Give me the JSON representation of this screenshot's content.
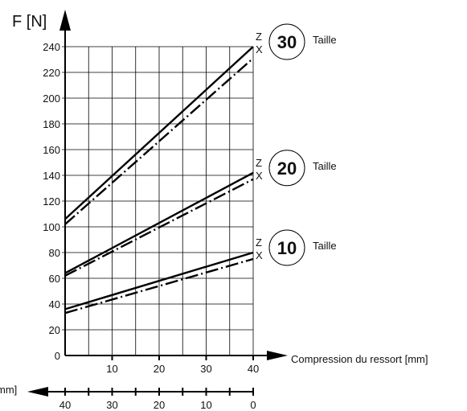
{
  "chart_data": {
    "type": "line",
    "title": "",
    "ylabel": "F [N]",
    "xlabel": "Compression du ressort [mm]",
    "x2label": "mm]",
    "ylim": [
      0,
      240
    ],
    "xlim": [
      0,
      40
    ],
    "y_ticks": [
      "0",
      "20",
      "40",
      "60",
      "80",
      "100",
      "120",
      "140",
      "160",
      "180",
      "200",
      "220",
      "240"
    ],
    "x_ticks": [
      "10",
      "20",
      "30",
      "40"
    ],
    "x2_ticks": [
      "40",
      "30",
      "20",
      "10",
      "0"
    ],
    "grid": true,
    "size_label": "Taille",
    "groups": [
      {
        "size": "30",
        "series": [
          {
            "name": "Z",
            "style": "solid",
            "x": [
              0,
              40
            ],
            "y": [
              106,
              240
            ]
          },
          {
            "name": "X",
            "style": "dashdot",
            "x": [
              0,
              40
            ],
            "y": [
              102,
              231
            ]
          }
        ]
      },
      {
        "size": "20",
        "series": [
          {
            "name": "Z",
            "style": "solid",
            "x": [
              0,
              40
            ],
            "y": [
              64,
              142
            ]
          },
          {
            "name": "X",
            "style": "dashdot",
            "x": [
              0,
              40
            ],
            "y": [
              62,
              137
            ]
          }
        ]
      },
      {
        "size": "10",
        "series": [
          {
            "name": "Z",
            "style": "solid",
            "x": [
              0,
              40
            ],
            "y": [
              36,
              80
            ]
          },
          {
            "name": "X",
            "style": "dashdot",
            "x": [
              0,
              40
            ],
            "y": [
              33,
              75
            ]
          }
        ]
      }
    ]
  }
}
